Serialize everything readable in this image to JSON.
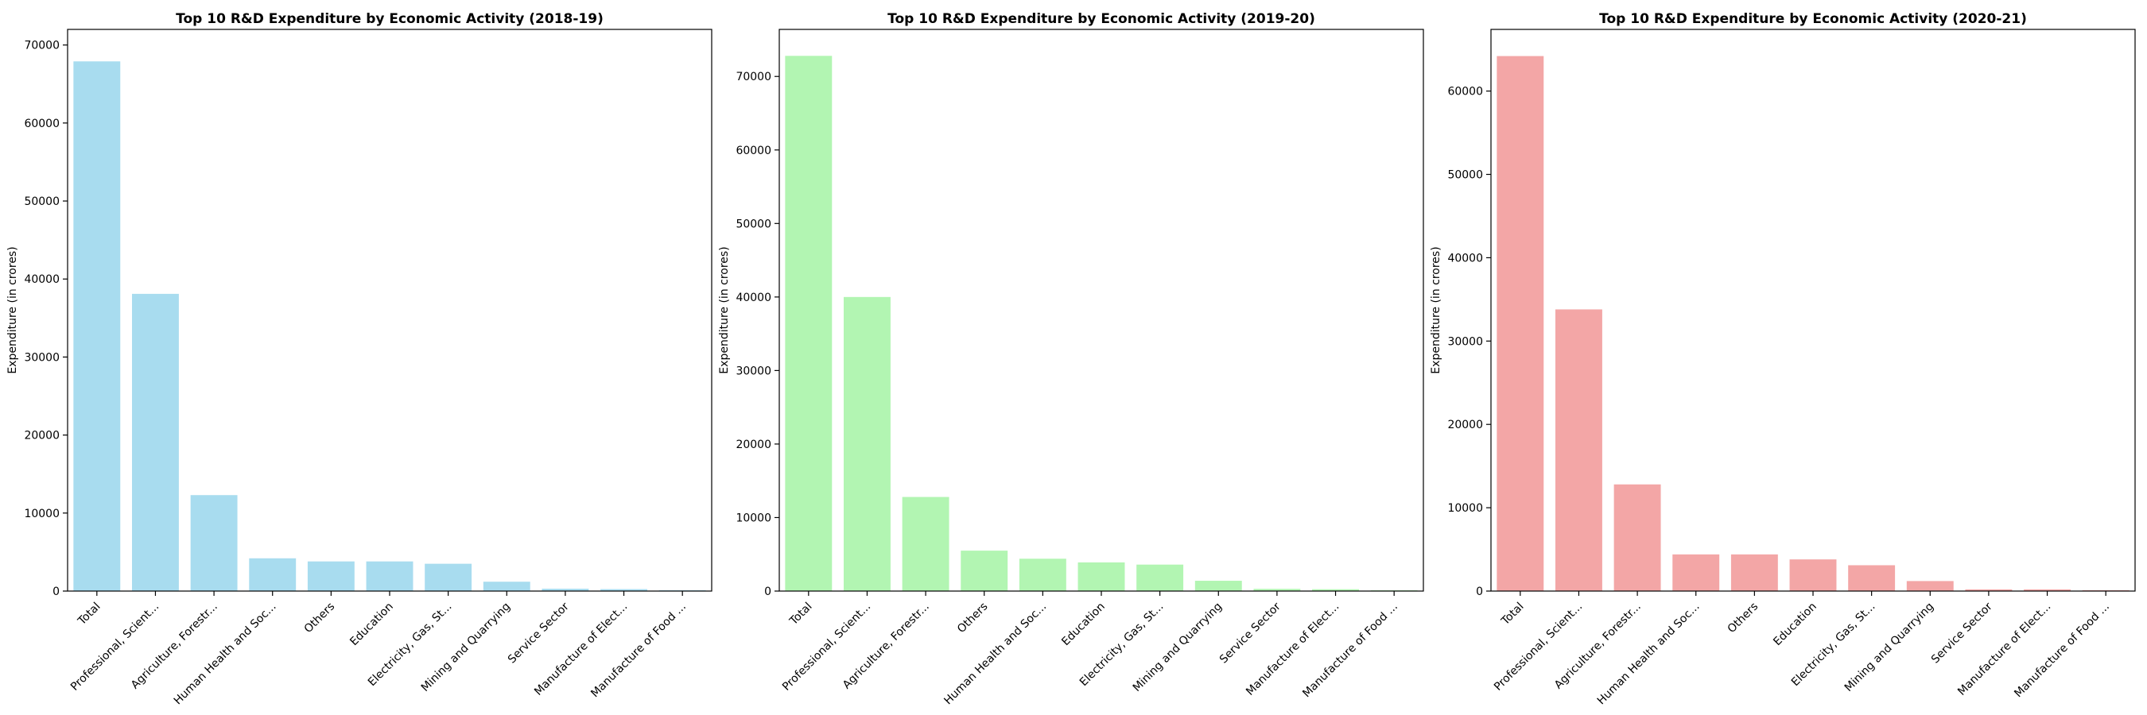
{
  "chart_data": [
    {
      "type": "bar",
      "title": "Top 10 R&D Expenditure by Economic Activity (2018-19)",
      "xlabel": "",
      "ylabel": "Expenditure (in crores)",
      "categories": [
        "Total",
        "Professional, Scient...",
        "Agriculture, Forestr...",
        "Human Health and Soc...",
        "Others",
        "Education",
        "Electricity, Gas, St...",
        "Mining and Quarrying",
        "Service Sector",
        "Manufacture of Elect...",
        "Manufacture of Food ..."
      ],
      "values": [
        67900,
        38100,
        12300,
        4200,
        3800,
        3800,
        3500,
        1200,
        300,
        250,
        100
      ],
      "ylim": [
        0,
        72000
      ],
      "yticks": [
        0,
        10000,
        20000,
        30000,
        40000,
        50000,
        60000,
        70000
      ],
      "color": "#a8dcef",
      "grid": false,
      "legend": "none"
    },
    {
      "type": "bar",
      "title": "Top 10 R&D Expenditure by Economic Activity (2019-20)",
      "xlabel": "",
      "ylabel": "Expenditure (in crores)",
      "categories": [
        "Total",
        "Professional, Scient...",
        "Agriculture, Forestr...",
        "Others",
        "Human Health and Soc...",
        "Education",
        "Electricity, Gas, St...",
        "Mining and Quarrying",
        "Service Sector",
        "Manufacture of Elect...",
        "Manufacture of Food ..."
      ],
      "values": [
        72800,
        40000,
        12800,
        5500,
        4400,
        3900,
        3600,
        1400,
        300,
        250,
        100
      ],
      "ylim": [
        0,
        76400
      ],
      "yticks": [
        0,
        10000,
        20000,
        30000,
        40000,
        50000,
        60000,
        70000
      ],
      "color": "#b2f5b2",
      "grid": false,
      "legend": "none"
    },
    {
      "type": "bar",
      "title": "Top 10 R&D Expenditure by Economic Activity (2020-21)",
      "xlabel": "",
      "ylabel": "Expenditure (in crores)",
      "categories": [
        "Total",
        "Professional, Scient...",
        "Agriculture, Forestr...",
        "Human Health and Soc...",
        "Others",
        "Education",
        "Electricity, Gas, St...",
        "Mining and Quarrying",
        "Service Sector",
        "Manufacture of Elect...",
        "Manufacture of Food ..."
      ],
      "values": [
        64200,
        33800,
        12800,
        4400,
        4400,
        3800,
        3100,
        1200,
        200,
        200,
        100
      ],
      "ylim": [
        0,
        67400
      ],
      "yticks": [
        0,
        10000,
        20000,
        30000,
        40000,
        50000,
        60000
      ],
      "color": "#f3a6a6",
      "grid": false,
      "legend": "none"
    }
  ]
}
